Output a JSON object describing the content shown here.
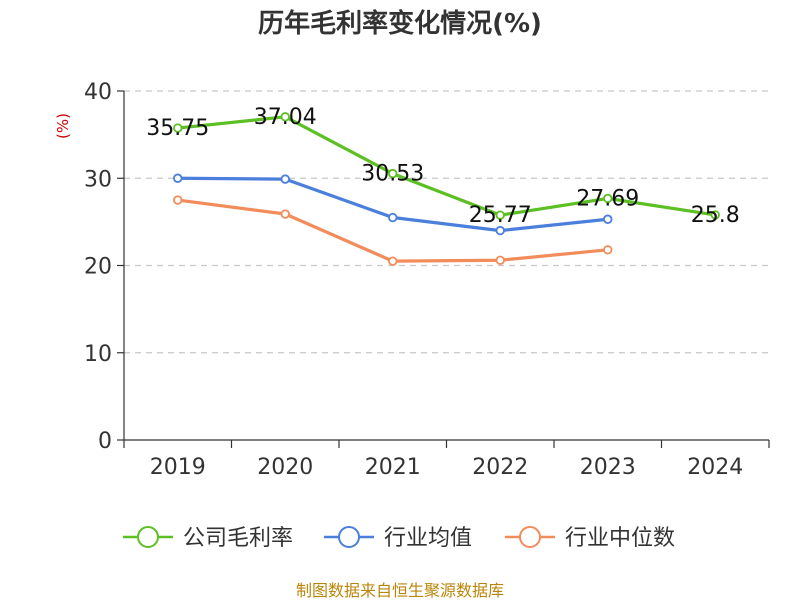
{
  "chart_data": {
    "type": "line",
    "title": "历年毛利率变化情况(%)",
    "ylabel": "(%)",
    "xlabel": "",
    "categories": [
      "2019",
      "2020",
      "2021",
      "2022",
      "2023",
      "2024"
    ],
    "ylim": [
      0,
      40
    ],
    "yticks": [
      0,
      10,
      20,
      30,
      40
    ],
    "grid": true,
    "legend_position": "bottom",
    "series": [
      {
        "name": "公司毛利率",
        "color": "#5cbf23",
        "values": [
          35.75,
          37.04,
          30.53,
          25.77,
          27.69,
          25.8
        ],
        "labels": [
          "35.75",
          "37.04",
          "30.53",
          "25.77",
          "27.69",
          "25.8"
        ],
        "show_labels": true
      },
      {
        "name": "行业均值",
        "color": "#4a7fdc",
        "values": [
          30.0,
          29.9,
          25.5,
          24.0,
          25.3,
          null
        ],
        "show_labels": false
      },
      {
        "name": "行业中位数",
        "color": "#f28c5a",
        "values": [
          27.5,
          25.9,
          20.5,
          20.6,
          21.8,
          null
        ],
        "show_labels": false
      }
    ],
    "source": "制图数据来自恒生聚源数据库"
  }
}
